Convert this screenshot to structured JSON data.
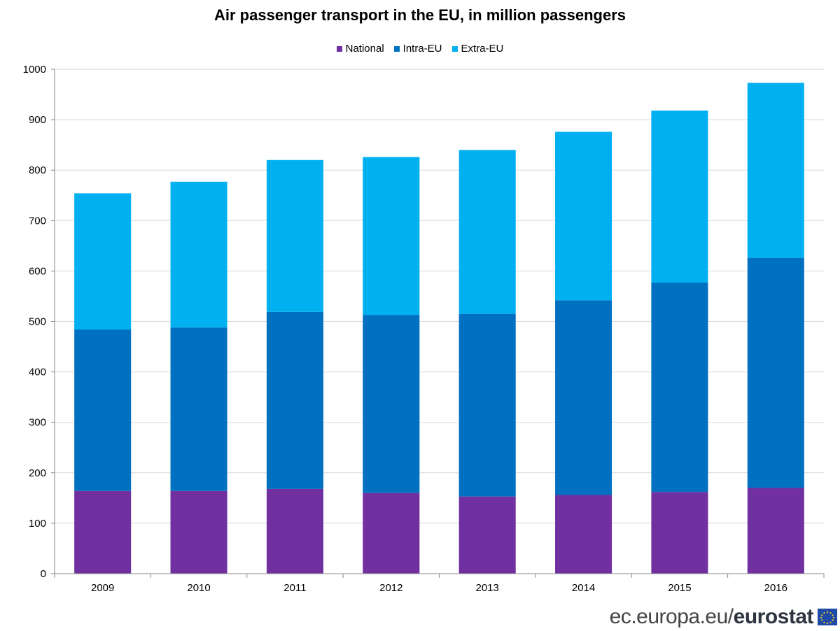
{
  "chart_data": {
    "type": "bar",
    "stacked": true,
    "title": "Air passenger transport in the EU, in million passengers",
    "categories": [
      "2009",
      "2010",
      "2011",
      "2012",
      "2013",
      "2014",
      "2015",
      "2016"
    ],
    "series": [
      {
        "name": "National",
        "color": "#7030a0",
        "values": [
          164,
          164,
          168,
          160,
          153,
          156,
          162,
          170
        ]
      },
      {
        "name": "Intra-EU",
        "color": "#0070c0",
        "values": [
          320,
          324,
          351,
          353,
          362,
          386,
          415,
          456
        ]
      },
      {
        "name": "Extra-EU",
        "color": "#00b0f0",
        "values": [
          270,
          289,
          301,
          313,
          325,
          334,
          341,
          347
        ]
      }
    ],
    "ylim": [
      0,
      1000
    ],
    "yticks": [
      0,
      100,
      200,
      300,
      400,
      500,
      600,
      700,
      800,
      900,
      1000
    ],
    "grid": true,
    "legend_position": "top"
  },
  "footer": {
    "domain": "ec.europa.eu/",
    "brand": "eurostat",
    "flag_icon": "eu-flag-icon"
  }
}
